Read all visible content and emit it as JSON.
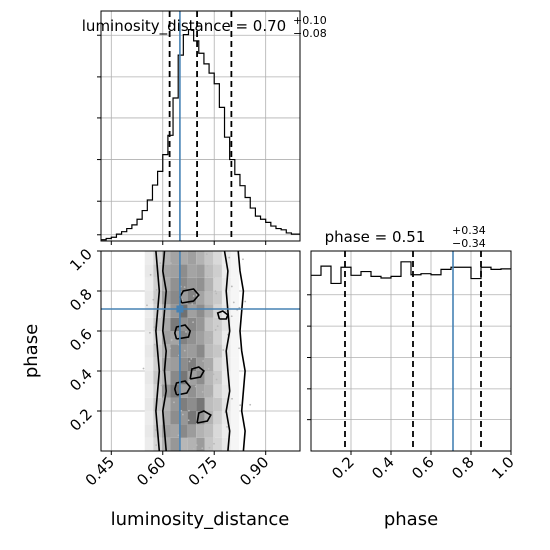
{
  "chart_data": [
    {
      "type": "histogram",
      "panel": "luminosity_distance-marginal",
      "title": {
        "main": "luminosity_distance = 0.70",
        "sup": "+0.10",
        "sub": "−0.08"
      },
      "xlim": [
        0.42,
        1.0
      ],
      "x_ticks": [
        0.45,
        0.6,
        0.75,
        0.9
      ],
      "step_x": [
        0.42,
        0.435,
        0.45,
        0.465,
        0.48,
        0.495,
        0.51,
        0.525,
        0.54,
        0.555,
        0.57,
        0.585,
        0.6,
        0.615,
        0.63,
        0.645,
        0.66,
        0.675,
        0.69,
        0.705,
        0.72,
        0.735,
        0.75,
        0.765,
        0.78,
        0.795,
        0.81,
        0.825,
        0.84,
        0.855,
        0.87,
        0.885,
        0.9,
        0.915,
        0.93,
        0.945,
        0.96,
        0.975,
        0.99,
        1.0
      ],
      "step_y": [
        0.2,
        0.4,
        0.6,
        1.1,
        1.5,
        2.0,
        2.6,
        3.5,
        4.9,
        6.6,
        9.0,
        11.2,
        13.9,
        17.0,
        23.0,
        29.9,
        33.2,
        34.0,
        32.2,
        30.2,
        28.5,
        27.0,
        25.3,
        21.5,
        16.7,
        13.1,
        10.7,
        8.9,
        7.0,
        5.3,
        4.0,
        3.5,
        3.0,
        2.4,
        2.0,
        1.8,
        1.3,
        1.1,
        1.1
      ],
      "ylim": [
        0,
        37
      ],
      "y_ticks": [
        1.0,
        6.4,
        13.1,
        19.8,
        26.4,
        33.1
      ],
      "quantile_lines": [
        0.62,
        0.7,
        0.8
      ],
      "truth": 0.65,
      "colors": {
        "hist": "#000000",
        "truth": "#4682b4"
      }
    },
    {
      "type": "scatter-contour",
      "panel": "luminosity_distance-vs-phase",
      "xlabel": "luminosity_distance",
      "ylabel": "phase",
      "xlim": [
        0.42,
        1.0
      ],
      "ylim": [
        0.0,
        1.0
      ],
      "x_ticks": [
        0.45,
        0.6,
        0.75,
        0.9
      ],
      "y_ticks": [
        0.2,
        0.4,
        0.6,
        0.8,
        1.0
      ],
      "truth": {
        "x": 0.65,
        "y": 0.71
      },
      "density_cells_x": [
        0.56,
        0.585,
        0.61,
        0.635,
        0.66,
        0.685,
        0.71,
        0.735,
        0.76,
        0.785,
        0.81
      ],
      "density_cells_y": [
        0.0,
        0.066,
        0.133,
        0.2,
        0.266,
        0.333,
        0.4,
        0.466,
        0.533,
        0.6,
        0.666,
        0.733,
        0.8,
        0.866,
        0.933,
        1.0
      ],
      "density": [
        [
          0.1,
          0.22,
          0.42,
          0.55,
          0.38,
          0.4,
          0.52,
          0.3,
          0.22,
          0.12,
          0.05
        ],
        [
          0.12,
          0.28,
          0.5,
          0.48,
          0.62,
          0.52,
          0.4,
          0.34,
          0.2,
          0.1,
          0.05
        ],
        [
          0.1,
          0.25,
          0.45,
          0.6,
          0.55,
          0.72,
          0.58,
          0.4,
          0.25,
          0.12,
          0.05
        ],
        [
          0.12,
          0.3,
          0.4,
          0.55,
          0.68,
          0.6,
          0.72,
          0.35,
          0.3,
          0.15,
          0.05
        ],
        [
          0.1,
          0.24,
          0.55,
          0.7,
          0.5,
          0.58,
          0.48,
          0.42,
          0.22,
          0.12,
          0.05
        ],
        [
          0.12,
          0.3,
          0.38,
          0.62,
          0.72,
          0.5,
          0.6,
          0.38,
          0.28,
          0.1,
          0.05
        ],
        [
          0.1,
          0.25,
          0.48,
          0.52,
          0.6,
          0.68,
          0.52,
          0.45,
          0.22,
          0.12,
          0.05
        ],
        [
          0.12,
          0.28,
          0.42,
          0.6,
          0.55,
          0.52,
          0.62,
          0.36,
          0.3,
          0.12,
          0.05
        ],
        [
          0.1,
          0.22,
          0.5,
          0.48,
          0.66,
          0.58,
          0.5,
          0.4,
          0.24,
          0.1,
          0.05
        ],
        [
          0.12,
          0.3,
          0.46,
          0.7,
          0.58,
          0.62,
          0.55,
          0.32,
          0.26,
          0.14,
          0.05
        ],
        [
          0.1,
          0.24,
          0.4,
          0.55,
          0.75,
          0.5,
          0.6,
          0.42,
          0.22,
          0.12,
          0.05
        ],
        [
          0.12,
          0.28,
          0.52,
          0.62,
          0.52,
          0.66,
          0.48,
          0.36,
          0.28,
          0.1,
          0.05
        ],
        [
          0.1,
          0.25,
          0.44,
          0.58,
          0.62,
          0.54,
          0.58,
          0.4,
          0.22,
          0.12,
          0.05
        ],
        [
          0.12,
          0.28,
          0.48,
          0.5,
          0.6,
          0.48,
          0.52,
          0.34,
          0.26,
          0.1,
          0.05
        ],
        [
          0.1,
          0.22,
          0.4,
          0.48,
          0.45,
          0.5,
          0.4,
          0.3,
          0.2,
          0.1,
          0.05
        ]
      ],
      "contours": [
        {
          "level": "outer",
          "points": [
            [
              0.59,
              0.0
            ],
            [
              0.585,
              0.1
            ],
            [
              0.58,
              0.2
            ],
            [
              0.585,
              0.3
            ],
            [
              0.59,
              0.4
            ],
            [
              0.585,
              0.5
            ],
            [
              0.58,
              0.6
            ],
            [
              0.585,
              0.7
            ],
            [
              0.59,
              0.8
            ],
            [
              0.585,
              0.9
            ],
            [
              0.58,
              1.0
            ]
          ]
        },
        {
          "level": "outer",
          "points": [
            [
              0.835,
              0.0
            ],
            [
              0.84,
              0.1
            ],
            [
              0.83,
              0.2
            ],
            [
              0.835,
              0.3
            ],
            [
              0.84,
              0.4
            ],
            [
              0.83,
              0.5
            ],
            [
              0.825,
              0.6
            ],
            [
              0.83,
              0.7
            ],
            [
              0.835,
              0.8
            ],
            [
              0.825,
              0.9
            ],
            [
              0.82,
              1.0
            ]
          ]
        },
        {
          "level": "inner",
          "points": [
            [
              0.61,
              0.0
            ],
            [
              0.605,
              0.1
            ],
            [
              0.6,
              0.2
            ],
            [
              0.61,
              0.3
            ],
            [
              0.605,
              0.4
            ],
            [
              0.61,
              0.5
            ],
            [
              0.6,
              0.6
            ],
            [
              0.605,
              0.7
            ],
            [
              0.61,
              0.8
            ],
            [
              0.6,
              0.9
            ],
            [
              0.605,
              1.0
            ]
          ]
        },
        {
          "level": "inner",
          "points": [
            [
              0.79,
              0.0
            ],
            [
              0.795,
              0.1
            ],
            [
              0.785,
              0.2
            ],
            [
              0.795,
              0.3
            ],
            [
              0.79,
              0.4
            ],
            [
              0.785,
              0.5
            ],
            [
              0.795,
              0.6
            ],
            [
              0.79,
              0.7
            ],
            [
              0.785,
              0.8
            ],
            [
              0.79,
              0.9
            ],
            [
              0.78,
              1.0
            ]
          ]
        },
        {
          "level": "blob",
          "points": [
            [
              0.64,
              0.56
            ],
            [
              0.675,
              0.57
            ],
            [
              0.68,
              0.6
            ],
            [
              0.665,
              0.63
            ],
            [
              0.64,
              0.62
            ],
            [
              0.635,
              0.59
            ],
            [
              0.64,
              0.56
            ]
          ]
        },
        {
          "level": "blob",
          "points": [
            [
              0.655,
              0.74
            ],
            [
              0.69,
              0.75
            ],
            [
              0.705,
              0.78
            ],
            [
              0.69,
              0.81
            ],
            [
              0.66,
              0.8
            ],
            [
              0.65,
              0.77
            ],
            [
              0.655,
              0.74
            ]
          ]
        },
        {
          "level": "blob",
          "points": [
            [
              0.64,
              0.28
            ],
            [
              0.67,
              0.29
            ],
            [
              0.68,
              0.32
            ],
            [
              0.665,
              0.35
            ],
            [
              0.64,
              0.34
            ],
            [
              0.635,
              0.31
            ],
            [
              0.64,
              0.28
            ]
          ]
        },
        {
          "level": "blob",
          "points": [
            [
              0.68,
              0.36
            ],
            [
              0.71,
              0.37
            ],
            [
              0.72,
              0.4
            ],
            [
              0.705,
              0.42
            ],
            [
              0.685,
              0.41
            ],
            [
              0.68,
              0.36
            ]
          ]
        },
        {
          "level": "blob",
          "points": [
            [
              0.7,
              0.14
            ],
            [
              0.73,
              0.15
            ],
            [
              0.74,
              0.18
            ],
            [
              0.72,
              0.2
            ],
            [
              0.705,
              0.19
            ],
            [
              0.7,
              0.14
            ]
          ]
        },
        {
          "level": "blob",
          "points": [
            [
              0.765,
              0.66
            ],
            [
              0.785,
              0.66
            ],
            [
              0.79,
              0.68
            ],
            [
              0.775,
              0.7
            ],
            [
              0.76,
              0.69
            ],
            [
              0.765,
              0.66
            ]
          ]
        }
      ],
      "colors": {
        "contour": "#000000",
        "truth": "#4682b4",
        "points": "#b8b8b8"
      }
    },
    {
      "type": "histogram",
      "panel": "phase-marginal",
      "title": {
        "main": "phase = 0.51",
        "sup": "+0.34",
        "sub": "−0.34"
      },
      "xlabel": "phase",
      "xlim": [
        0.0,
        1.0
      ],
      "x_ticks": [
        0.2,
        0.4,
        0.6,
        0.8,
        1.0
      ],
      "step_x": [
        0.0,
        0.05,
        0.1,
        0.15,
        0.2,
        0.25,
        0.3,
        0.35,
        0.4,
        0.45,
        0.5,
        0.55,
        0.6,
        0.65,
        0.7,
        0.75,
        0.8,
        0.85,
        0.9,
        0.95,
        1.0
      ],
      "step_y": [
        32.5,
        34.2,
        31.0,
        34.0,
        32.5,
        33.2,
        32.3,
        32.0,
        32.3,
        35.0,
        32.6,
        32.8,
        32.6,
        33.6,
        34.0,
        34.0,
        31.9,
        34.0,
        33.6,
        33.7
      ],
      "ylim": [
        0,
        37
      ],
      "y_ticks": [
        5.8,
        11.5,
        17.3,
        23.1,
        28.9
      ],
      "quantile_lines": [
        0.17,
        0.51,
        0.85
      ],
      "truth": 0.71,
      "colors": {
        "hist": "#000000",
        "truth": "#4682b4"
      }
    }
  ]
}
